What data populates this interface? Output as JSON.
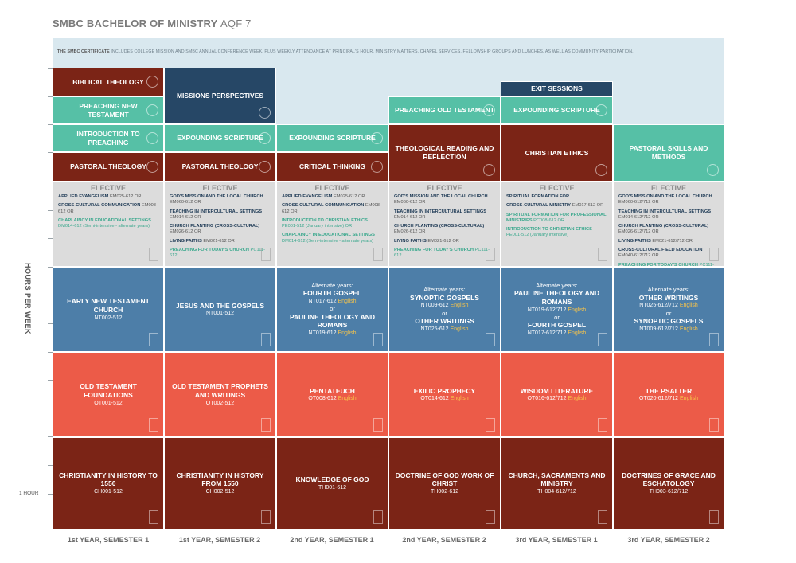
{
  "title": {
    "main": "SMBC BACHELOR OF MINISTRY",
    "level": "AQF 7"
  },
  "certificate": {
    "bold": "THE SMBC CERTIFICATE",
    "text": "INCLUDES COLLEGE MISSION AND SMBC ANNUAL CONFERENCE WEEK, PLUS WEEKLY ATTENDANCE AT PRINCIPAL'S HOUR, MINISTRY MATTERS, CHAPEL SERVICES, FELLOWSHIP GROUPS AND LUNCHES, AS WELL AS COMMUNITY PARTICIPATION."
  },
  "axis": {
    "ylabel": "HOURS PER WEEK",
    "one_hour": "1 HOUR"
  },
  "columns": [
    "1st YEAR, SEMESTER 1",
    "1st YEAR, SEMESTER 2",
    "2nd YEAR, SEMESTER 1",
    "2nd YEAR, SEMESTER 2",
    "3rd YEAR, SEMESTER 1",
    "3rd YEAR, SEMESTER 2"
  ],
  "colors": {
    "dark_red": "#7b2416",
    "navy": "#264766",
    "teal": "#56c0a6",
    "blue": "#4d7ea8",
    "coral": "#ec5b48",
    "grey": "#dcdcdc",
    "english": "#f7c44a"
  },
  "ministry": {
    "c1": {
      "biblical": "BIBLICAL THEOLOGY",
      "preaching_nt": "PREACHING NEW TESTAMENT",
      "intro_preaching": "INTRODUCTION TO PREACHING",
      "pastoral": "PASTORAL THEOLOGY"
    },
    "c2": {
      "missions": "MISSIONS PERSPECTIVES",
      "expounding": "EXPOUNDING SCRIPTURE",
      "pastoral": "PASTORAL THEOLOGY"
    },
    "c3": {
      "expounding": "EXPOUNDING SCRIPTURE",
      "critical": "CRITICAL THINKING"
    },
    "c4": {
      "preaching_ot": "PREACHING OLD TESTAMENT",
      "theological": "THEOLOGICAL READING AND REFLECTION"
    },
    "c5": {
      "exit": "EXIT SESSIONS",
      "expounding": "EXPOUNDING SCRIPTURE",
      "ethics": "CHRISTIAN ETHICS"
    },
    "c6": {
      "pastoral_skills": "PASTORAL SKILLS AND METHODS"
    }
  },
  "elective": {
    "heading": "ELECTIVE",
    "c1": [
      {
        "name": "APPLIED EVANGELISM",
        "detail": "EM025-612 OR",
        "hl": false
      },
      {
        "name": "CROSS-CULTURAL COMMUNICATION",
        "detail": "EM008-612 OR",
        "hl": false
      },
      {
        "name": "CHAPLAINCY IN EDUCATIONAL SETTINGS",
        "detail": "DM014-612 (Semi-intensive - alternate years)",
        "hl": true
      }
    ],
    "c2": [
      {
        "name": "GOD'S MISSION AND THE LOCAL CHURCH",
        "detail": "EM060-612 OR",
        "hl": false
      },
      {
        "name": "TEACHING IN INTERCULTURAL SETTINGS",
        "detail": "EM014-612 OR",
        "hl": false
      },
      {
        "name": "CHURCH PLANTING (CROSS-CULTURAL)",
        "detail": "EM026-612 OR",
        "hl": false
      },
      {
        "name": "LIVING FAITHS",
        "detail": "EM021-612 OR",
        "hl": false
      },
      {
        "name": "PREACHING FOR TODAY'S CHURCH",
        "detail": "PC111-612",
        "hl": true
      }
    ],
    "c3": [
      {
        "name": "APPLIED EVANGELISM",
        "detail": "EM025-612 OR",
        "hl": false
      },
      {
        "name": "CROSS-CULTURAL COMMUNICATION",
        "detail": "EM008-612 OR",
        "hl": false
      },
      {
        "name": "INTRODUCTION TO CHRISTIAN ETHICS",
        "detail": "PE001-512 (January intensive) OR",
        "hl": true
      },
      {
        "name": "CHAPLAINCY IN EDUCATIONAL SETTINGS",
        "detail": "DM014-612 (Semi-intensive - alternate years)",
        "hl": true
      }
    ],
    "c4": [
      {
        "name": "GOD'S MISSION AND THE LOCAL CHURCH",
        "detail": "EM060-612 OR",
        "hl": false
      },
      {
        "name": "TEACHING IN INTERCULTURAL SETTINGS",
        "detail": "EM014-612 OR",
        "hl": false
      },
      {
        "name": "CHURCH PLANTING (CROSS-CULTURAL)",
        "detail": "EM026-612 OR",
        "hl": false
      },
      {
        "name": "LIVING FAITHS",
        "detail": "EM021-612 OR",
        "hl": false
      },
      {
        "name": "PREACHING FOR TODAY'S CHURCH",
        "detail": "PC111-612",
        "hl": true
      }
    ],
    "c5": [
      {
        "name": "SPIRITUAL FORMATION FOR",
        "detail": "",
        "hl": false
      },
      {
        "name": "CROSS-CULTURAL MINISTRY",
        "detail": "EM017-612 OR",
        "hl": false
      },
      {
        "name": "SPIRITUAL FORMATION FOR PROFESSIONAL MINISTRIES",
        "detail": "PC008-612 OR",
        "hl": true
      },
      {
        "name": "INTRODUCTION TO CHRISTIAN ETHICS",
        "detail": "PE001-512 (January intensive)",
        "hl": true
      }
    ],
    "c6": [
      {
        "name": "GOD'S MISSION AND THE LOCAL CHURCH",
        "detail": "EM060-612/712 OR",
        "hl": false
      },
      {
        "name": "TEACHING IN INTERCULTURAL SETTINGS",
        "detail": "EM014-612/712 OR",
        "hl": false
      },
      {
        "name": "CHURCH PLANTING (CROSS-CULTURAL)",
        "detail": "EM026-612/712 OR",
        "hl": false
      },
      {
        "name": "LIVING FAITHS",
        "detail": "EM021-612/712 OR",
        "hl": false
      },
      {
        "name": "CROSS-CULTURAL FIELD EDUCATION",
        "detail": "EM040-612/712 OR",
        "hl": false
      },
      {
        "name": "PREACHING FOR TODAY'S CHURCH",
        "detail": "PC111-612/712",
        "hl": true
      }
    ]
  },
  "nt": {
    "alt_label": "Alternate years:",
    "or": "or",
    "english": "English",
    "c1": {
      "title": "EARLY NEW TESTAMENT CHURCH",
      "code": "NT002-512"
    },
    "c2": {
      "title": "JESUS AND THE GOSPELS",
      "code": "NT001-512"
    },
    "c3": {
      "a_title": "FOURTH GOSPEL",
      "a_code": "NT017-612",
      "b_title": "PAULINE THEOLOGY AND ROMANS",
      "b_code": "NT019-612"
    },
    "c4": {
      "a_title": "SYNOPTIC GOSPELS",
      "a_code": "NT009-612",
      "b_title": "OTHER WRITINGS",
      "b_code": "NT025-612"
    },
    "c5": {
      "a_title": "PAULINE THEOLOGY AND ROMANS",
      "a_code": "NT019-612/712",
      "b_title": "FOURTH GOSPEL",
      "b_code": "NT017-612/712"
    },
    "c6": {
      "a_title": "OTHER WRITINGS",
      "a_code": "NT025-612/712",
      "b_title": "SYNOPTIC GOSPELS",
      "b_code": "NT009-612/712"
    }
  },
  "ot": {
    "english": "English",
    "c1": {
      "title": "OLD TESTAMENT FOUNDATIONS",
      "code": "OT001-512"
    },
    "c2": {
      "title": "OLD TESTAMENT PROPHETS AND WRITINGS",
      "code": "OT002-512"
    },
    "c3": {
      "title": "PENTATEUCH",
      "code": "OT008-612"
    },
    "c4": {
      "title": "EXILIC PROPHECY",
      "code": "OT014-612"
    },
    "c5": {
      "title": "WISDOM LITERATURE",
      "code": "OT016-612/712"
    },
    "c6": {
      "title": "THE PSALTER",
      "code": "OT020-612/712"
    }
  },
  "th": {
    "c1": {
      "title": "CHRISTIANITY IN HISTORY TO 1550",
      "code": "CH001-512"
    },
    "c2": {
      "title": "CHRISTIANITY IN HISTORY FROM 1550",
      "code": "CH002-512"
    },
    "c3": {
      "title": "KNOWLEDGE OF GOD",
      "code": "TH001-612"
    },
    "c4": {
      "title": "DOCTRINE OF GOD WORK OF CHRIST",
      "code": "TH002-612"
    },
    "c5": {
      "title": "CHURCH, SACRAMENTS AND MINISTRY",
      "code": "TH004-612/712"
    },
    "c6": {
      "title": "DOCTRINES OF GRACE AND ESCHATOLOGY",
      "code": "TH003-612/712"
    }
  }
}
